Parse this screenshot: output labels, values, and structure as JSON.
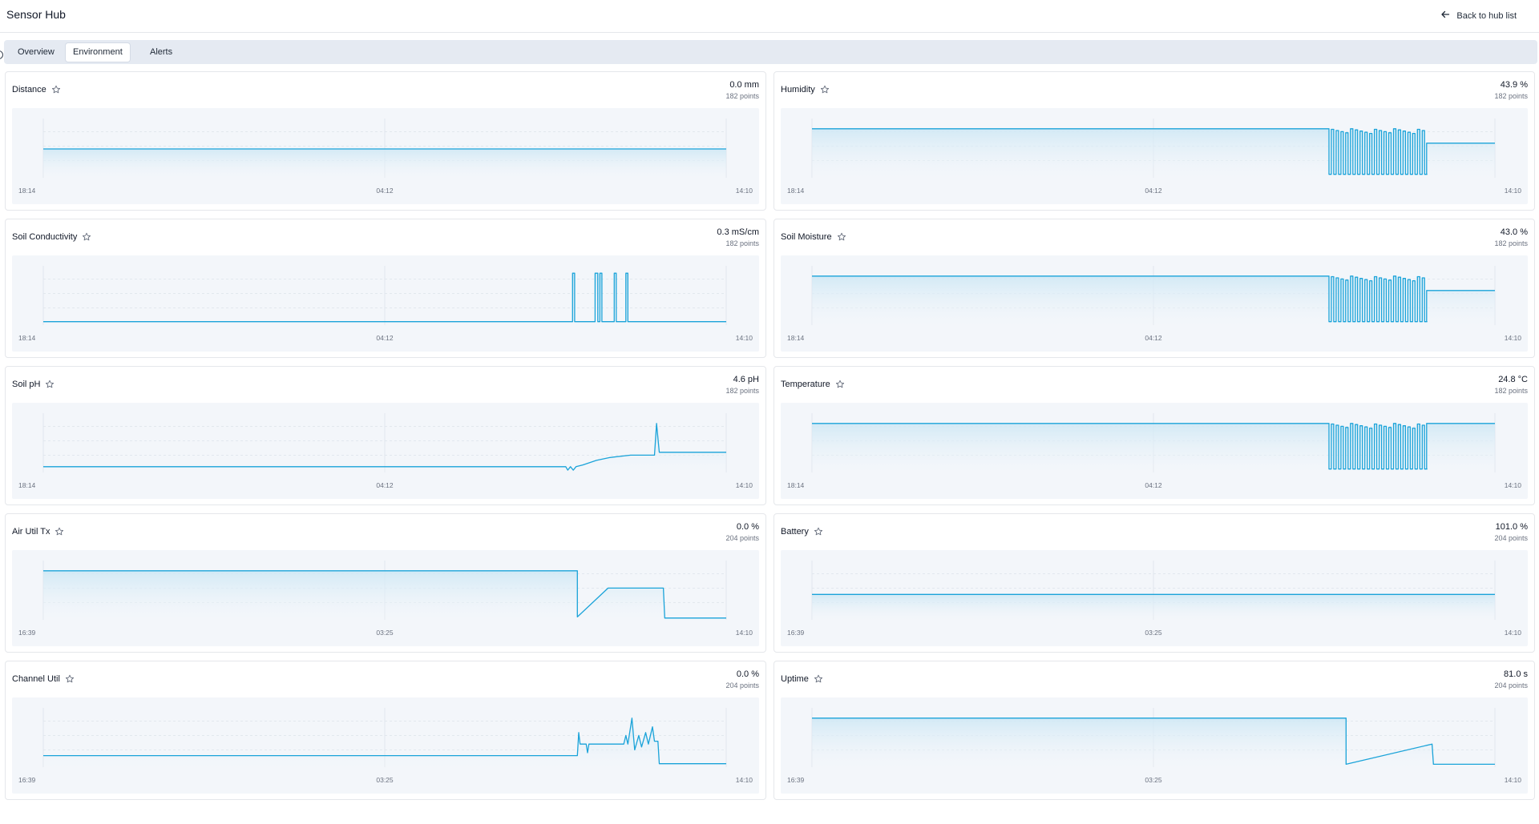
{
  "header": {
    "app_title": "Sensor Hub",
    "back_label": "Back to hub list"
  },
  "tabs": [
    {
      "label": "Overview",
      "active": false
    },
    {
      "label": "Environment",
      "active": true
    },
    {
      "label": "Alerts",
      "active": false
    }
  ],
  "colors": {
    "line": "#1aa3d9",
    "fill_top": "#cfe8f5",
    "plot_bg": "#f3f6fa",
    "tab_bar": "#e5eaf2"
  },
  "cards": [
    {
      "id": "distance",
      "title": "Distance",
      "value": "0.0 mm",
      "points": "182 points",
      "x_ticks": [
        "18:14",
        "04:12",
        "14:10"
      ],
      "shape": "flat",
      "level": 0.5
    },
    {
      "id": "humidity",
      "title": "Humidity",
      "value": "43.9 %",
      "points": "182 points",
      "x_ticks": [
        "18:14",
        "04:12",
        "14:10"
      ],
      "shape": "osc",
      "high": 0.85,
      "low": 0.06,
      "after": 0.6
    },
    {
      "id": "soil-conductivity",
      "title": "Soil Conductivity",
      "value": "0.3 mS/cm",
      "points": "182 points",
      "x_ticks": [
        "18:14",
        "04:12",
        "14:10"
      ],
      "shape": "spikes",
      "level": 0.06
    },
    {
      "id": "soil-moisture",
      "title": "Soil Moisture",
      "value": "43.0 %",
      "points": "182 points",
      "x_ticks": [
        "18:14",
        "04:12",
        "14:10"
      ],
      "shape": "osc",
      "high": 0.85,
      "low": 0.06,
      "after": 0.6
    },
    {
      "id": "soil-ph",
      "title": "Soil pH",
      "value": "4.6 pH",
      "points": "182 points",
      "x_ticks": [
        "18:14",
        "04:12",
        "14:10"
      ],
      "shape": "steps",
      "level": 0.1
    },
    {
      "id": "temperature",
      "title": "Temperature",
      "value": "24.8 °C",
      "points": "182 points",
      "x_ticks": [
        "18:14",
        "04:12",
        "14:10"
      ],
      "shape": "osc",
      "high": 0.85,
      "low": 0.06,
      "after": 0.85
    },
    {
      "id": "air-util-tx",
      "title": "Air Util Tx",
      "value": "0.0 %",
      "points": "204 points",
      "x_ticks": [
        "16:39",
        "03:25",
        "14:10"
      ],
      "shape": "airutil"
    },
    {
      "id": "battery",
      "title": "Battery",
      "value": "101.0 %",
      "points": "204 points",
      "x_ticks": [
        "16:39",
        "03:25",
        "14:10"
      ],
      "shape": "flat",
      "level": 0.44
    },
    {
      "id": "channel-util",
      "title": "Channel Util",
      "value": "0.0 %",
      "points": "204 points",
      "x_ticks": [
        "16:39",
        "03:25",
        "14:10"
      ],
      "shape": "chutil"
    },
    {
      "id": "uptime",
      "title": "Uptime",
      "value": "81.0 s",
      "points": "204 points",
      "x_ticks": [
        "16:39",
        "03:25",
        "14:10"
      ],
      "shape": "uptime"
    }
  ]
}
